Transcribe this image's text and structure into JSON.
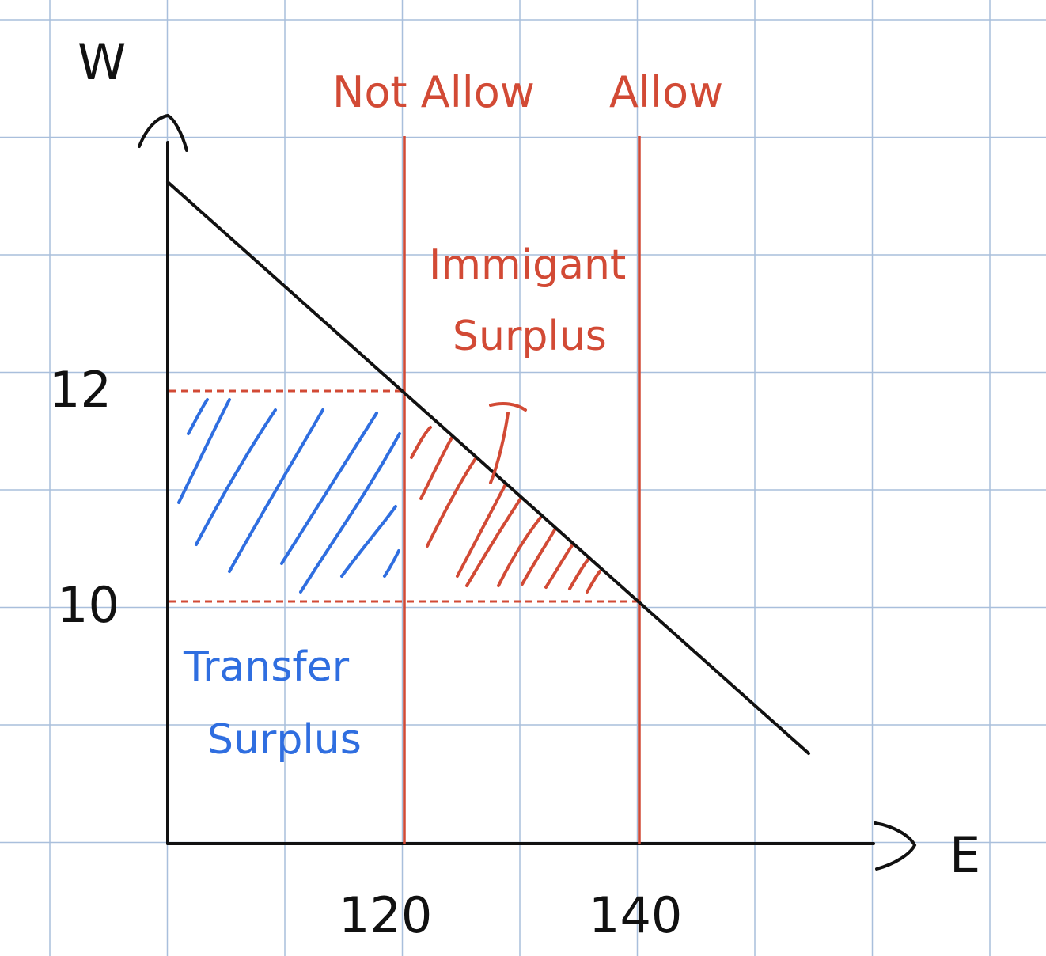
{
  "labels": {
    "y_axis": "W",
    "x_axis": "E",
    "not_allow": "Not Allow",
    "allow": "Allow",
    "immigrant_surplus_line1": "Immigant",
    "immigrant_surplus_line2": "Surplus",
    "transfer_surplus_line1": "Transfer",
    "transfer_surplus_line2": "Surplus",
    "tick_120": "120",
    "tick_140": "140",
    "tick_12": "12",
    "tick_10": "10"
  },
  "colors": {
    "grid": "#a9bfdc",
    "axis": "#111111",
    "red": "#d24a35",
    "blue": "#2f6ee0"
  },
  "icons": {
    "y_axis_arrow": "up-arrow-icon",
    "x_axis_arrow": "right-arrow-icon"
  }
}
